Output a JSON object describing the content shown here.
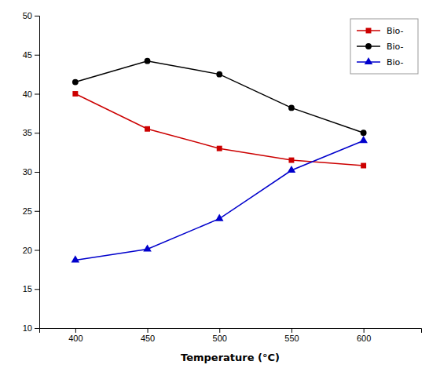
{
  "chart_data": {
    "type": "line",
    "x_label": "Temperature (°C)",
    "x": [
      400,
      450,
      500,
      550,
      600
    ],
    "series": [
      {
        "name": "Bio-",
        "color": "#cc0000",
        "marker": "square",
        "line_style": "solid",
        "values": [
          40.0,
          35.5,
          33.0,
          31.5,
          30.8
        ]
      },
      {
        "name": "Bio-",
        "color": "#000000",
        "marker": "circle",
        "line_style": "solid",
        "values": [
          41.5,
          44.2,
          42.5,
          38.2,
          35.0
        ]
      },
      {
        "name": "Bio-",
        "color": "#0000cc",
        "marker": "triangle",
        "line_style": "solid",
        "values": [
          18.7,
          20.1,
          24.0,
          30.2,
          34.0
        ]
      }
    ],
    "xlim": [
      375,
      640
    ],
    "ylim": [
      10,
      50
    ],
    "xticks": [
      400,
      450,
      500,
      550,
      600
    ],
    "yticks": [
      10,
      15,
      20,
      25,
      30,
      35,
      40,
      45,
      50
    ],
    "grid": false,
    "legend": "upper right"
  }
}
